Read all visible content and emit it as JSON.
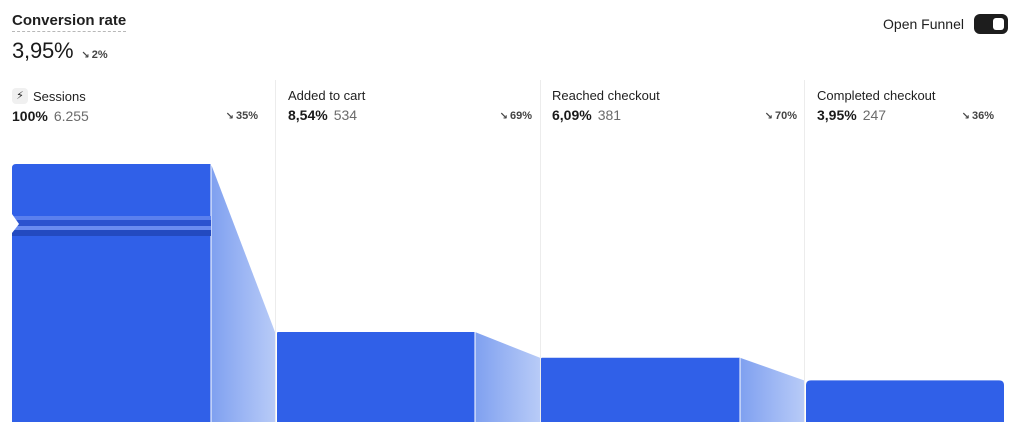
{
  "header": {
    "title": "Conversion rate",
    "value": "3,95%",
    "change": "2%"
  },
  "toggle": {
    "label": "Open Funnel",
    "on": true
  },
  "stages": [
    {
      "name": "Sessions",
      "icon": "sessions-icon",
      "pct": "100%",
      "count": "6.255",
      "drop": "35%"
    },
    {
      "name": "Added to cart",
      "icon": null,
      "pct": "8,54%",
      "count": "534",
      "drop": "69%"
    },
    {
      "name": "Reached checkout",
      "icon": null,
      "pct": "6,09%",
      "count": "381",
      "drop": "70%"
    },
    {
      "name": "Completed checkout",
      "icon": null,
      "pct": "3,95%",
      "count": "247",
      "drop": "36%"
    }
  ],
  "chart_data": {
    "type": "bar",
    "categories": [
      "Sessions",
      "Added to cart",
      "Reached checkout",
      "Completed checkout"
    ],
    "values": [
      6255,
      534,
      381,
      247
    ],
    "percentages": [
      100,
      8.54,
      6.09,
      3.95
    ],
    "drop_off_percentages": [
      35,
      69,
      70,
      36
    ],
    "title": "Conversion rate",
    "colors": {
      "bar": "#3060e8",
      "connector_light": "#b8cbf7",
      "connector_dark": "#7fa0f0"
    }
  }
}
